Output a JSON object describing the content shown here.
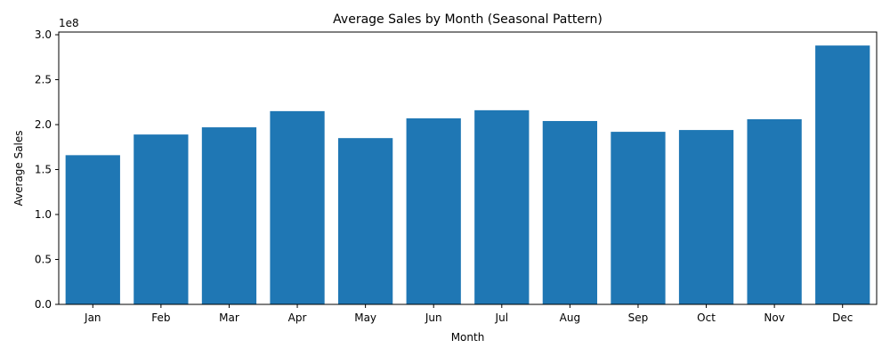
{
  "chart_data": {
    "type": "bar",
    "title": "Average Sales by Month (Seasonal Pattern)",
    "xlabel": "Month",
    "ylabel": "Average Sales",
    "y_offset_text": "1e8",
    "categories": [
      "Jan",
      "Feb",
      "Mar",
      "Apr",
      "May",
      "Jun",
      "Jul",
      "Aug",
      "Sep",
      "Oct",
      "Nov",
      "Dec"
    ],
    "values": [
      166000000,
      189000000,
      197000000,
      215000000,
      185000000,
      207000000,
      216000000,
      204000000,
      192000000,
      194000000,
      206000000,
      288000000
    ],
    "ylim": [
      0,
      303000000
    ],
    "yticks": [
      0,
      50000000,
      100000000,
      150000000,
      200000000,
      250000000,
      300000000
    ],
    "ytick_labels": [
      "0.0",
      "0.5",
      "1.0",
      "1.5",
      "2.0",
      "2.5",
      "3.0"
    ],
    "bar_color": "#1f77b4",
    "grid": false,
    "legend": "none"
  }
}
